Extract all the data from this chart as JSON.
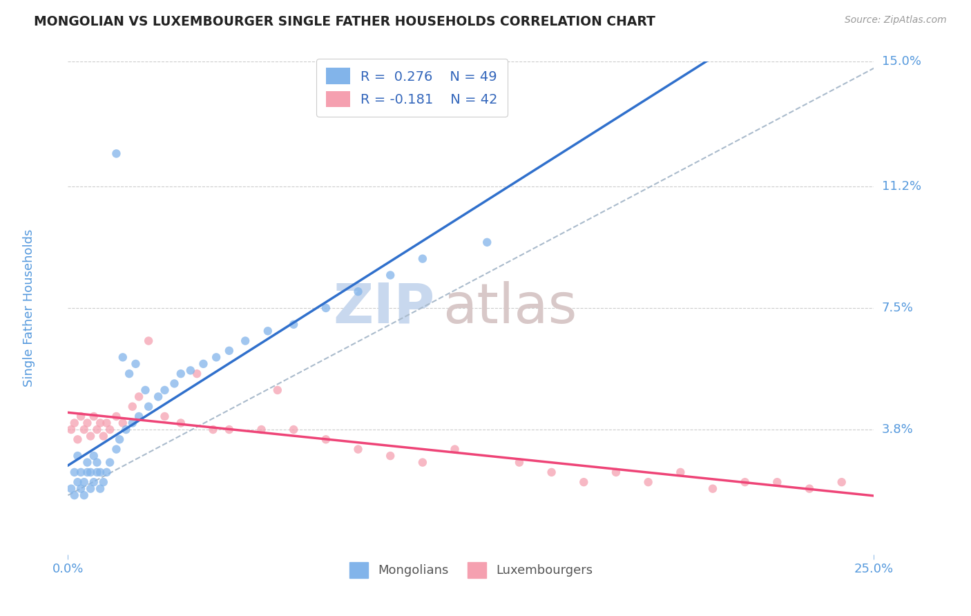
{
  "title": "MONGOLIAN VS LUXEMBOURGER SINGLE FATHER HOUSEHOLDS CORRELATION CHART",
  "source": "Source: ZipAtlas.com",
  "ylabel": "Single Father Households",
  "xlim": [
    0.0,
    0.25
  ],
  "ylim": [
    0.0,
    0.15
  ],
  "xtick_labels": [
    "0.0%",
    "25.0%"
  ],
  "ytick_labels": [
    "3.8%",
    "7.5%",
    "11.2%",
    "15.0%"
  ],
  "ytick_values": [
    0.038,
    0.075,
    0.112,
    0.15
  ],
  "grid_color": "#cccccc",
  "watermark_zip": "ZIP",
  "watermark_atlas": "atlas",
  "watermark_color_zip": "#c8d8ee",
  "watermark_color_atlas": "#d8c8c8",
  "r_mongolian": 0.276,
  "n_mongolian": 49,
  "r_luxembourger": -0.181,
  "n_luxembourger": 42,
  "mongolian_color": "#82b4ea",
  "luxembourger_color": "#f5a0b0",
  "mongolian_trend_color": "#3070cc",
  "luxembourger_trend_color": "#ee4477",
  "ref_line_color": "#aabbcc",
  "title_color": "#222222",
  "axis_label_color": "#5599dd",
  "legend_text_color": "#3366bb",
  "mongolian_x": [
    0.001,
    0.002,
    0.002,
    0.003,
    0.003,
    0.004,
    0.004,
    0.005,
    0.005,
    0.006,
    0.006,
    0.007,
    0.007,
    0.008,
    0.008,
    0.009,
    0.009,
    0.01,
    0.01,
    0.011,
    0.012,
    0.013,
    0.015,
    0.016,
    0.018,
    0.02,
    0.022,
    0.025,
    0.028,
    0.03,
    0.033,
    0.035,
    0.038,
    0.042,
    0.046,
    0.05,
    0.055,
    0.062,
    0.07,
    0.08,
    0.09,
    0.1,
    0.11,
    0.13,
    0.015,
    0.017,
    0.019,
    0.021,
    0.024
  ],
  "mongolian_y": [
    0.02,
    0.018,
    0.025,
    0.022,
    0.03,
    0.02,
    0.025,
    0.018,
    0.022,
    0.025,
    0.028,
    0.02,
    0.025,
    0.022,
    0.03,
    0.025,
    0.028,
    0.02,
    0.025,
    0.022,
    0.025,
    0.028,
    0.032,
    0.035,
    0.038,
    0.04,
    0.042,
    0.045,
    0.048,
    0.05,
    0.052,
    0.055,
    0.056,
    0.058,
    0.06,
    0.062,
    0.065,
    0.068,
    0.07,
    0.075,
    0.08,
    0.085,
    0.09,
    0.095,
    0.122,
    0.06,
    0.055,
    0.058,
    0.05
  ],
  "luxembourger_x": [
    0.001,
    0.002,
    0.003,
    0.004,
    0.005,
    0.006,
    0.007,
    0.008,
    0.009,
    0.01,
    0.011,
    0.012,
    0.013,
    0.015,
    0.017,
    0.02,
    0.022,
    0.025,
    0.03,
    0.035,
    0.04,
    0.045,
    0.05,
    0.06,
    0.065,
    0.07,
    0.08,
    0.09,
    0.1,
    0.11,
    0.12,
    0.14,
    0.15,
    0.17,
    0.19,
    0.21,
    0.23,
    0.24,
    0.16,
    0.18,
    0.2,
    0.22
  ],
  "luxembourger_y": [
    0.038,
    0.04,
    0.035,
    0.042,
    0.038,
    0.04,
    0.036,
    0.042,
    0.038,
    0.04,
    0.036,
    0.04,
    0.038,
    0.042,
    0.04,
    0.045,
    0.048,
    0.065,
    0.042,
    0.04,
    0.055,
    0.038,
    0.038,
    0.038,
    0.05,
    0.038,
    0.035,
    0.032,
    0.03,
    0.028,
    0.032,
    0.028,
    0.025,
    0.025,
    0.025,
    0.022,
    0.02,
    0.022,
    0.022,
    0.022,
    0.02,
    0.022
  ]
}
